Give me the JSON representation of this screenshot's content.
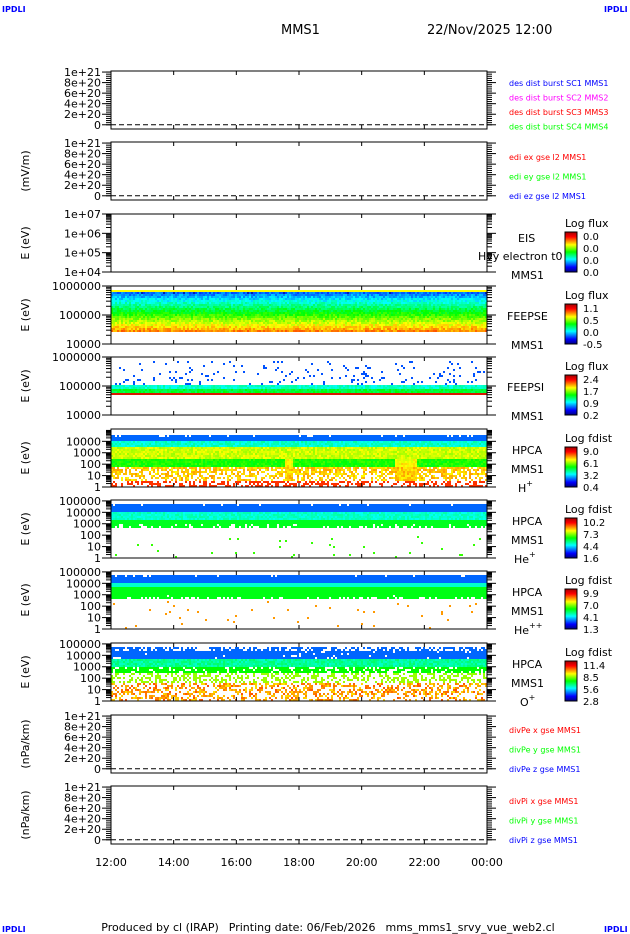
{
  "header": {
    "logo_top_left": "IPDLI",
    "logo_top_right": "IPDLI",
    "spacecraft": "MMS1",
    "datetime": "22/Nov/2025 12:00"
  },
  "footer": {
    "logo_bottom_left": "IPDLI",
    "logo_bottom_right": "IPDLI",
    "credit": "Produced by cl (IRAP)",
    "print_date": "Printing date: 06/Feb/2026",
    "macro": "mms_mms1_srvy_vue_web2.cl"
  },
  "colors": {
    "blue": "#0000ff",
    "magenta": "#ff00ff",
    "red": "#ff0000",
    "green": "#00ff00"
  },
  "chart_data": {
    "type": "heatmap",
    "x_ticks": [
      "12:00",
      "14:00",
      "16:00",
      "18:00",
      "20:00",
      "22:00",
      "00:00"
    ],
    "xlim": [
      "22/Nov/2025 12:00",
      "23/Nov/2025 00:00"
    ],
    "panels": [
      {
        "id": "des-dist",
        "ylabel": "",
        "scale": "linear",
        "ylim": [
          -8e+19,
          1.02e+21
        ],
        "yticks": [
          {
            "value": 1e+21,
            "label": "1e+21"
          },
          {
            "value": 8e+20,
            "label": "8e+20"
          },
          {
            "value": 6e+20,
            "label": "6e+20"
          },
          {
            "value": 4e+20,
            "label": "4e+20"
          },
          {
            "value": 2e+20,
            "label": "2e+20"
          },
          {
            "value": 0,
            "label": "0"
          }
        ],
        "legend": [
          {
            "text": "des dist burst SC1 MMS1",
            "color": "#0000ff"
          },
          {
            "text": "des dist burst SC2 MMS2",
            "color": "#ff00ff"
          },
          {
            "text": "des dist burst SC3 MMS3",
            "color": "#ff0000"
          },
          {
            "text": "des dist burst SC4 MMS4",
            "color": "#00ff00"
          }
        ]
      },
      {
        "id": "edi",
        "ylabel": "(mV/m)",
        "scale": "linear",
        "ylim": [
          -8e+19,
          1.02e+21
        ],
        "yticks": [
          {
            "value": 1e+21,
            "label": "1e+21"
          },
          {
            "value": 8e+20,
            "label": "8e+20"
          },
          {
            "value": 6e+20,
            "label": "6e+20"
          },
          {
            "value": 4e+20,
            "label": "4e+20"
          },
          {
            "value": 2e+20,
            "label": "2e+20"
          },
          {
            "value": 0,
            "label": "0"
          }
        ],
        "legend": [
          {
            "text": "edi ex gse l2 MMS1",
            "color": "#ff0000"
          },
          {
            "text": "edi ey gse l2 MMS1",
            "color": "#00ff00"
          },
          {
            "text": "edi ez gse l2 MMS1",
            "color": "#0000ff"
          }
        ]
      },
      {
        "id": "eis",
        "ylabel": "E (eV)",
        "scale": "log",
        "ylim": [
          10000.0,
          10000000.0
        ],
        "yticks": [
          {
            "value": 10000000.0,
            "label": "1e+07"
          },
          {
            "value": 1000000.0,
            "label": "1e+06"
          },
          {
            "value": 100000.0,
            "label": "1e+05"
          },
          {
            "value": 10000.0,
            "label": "1e+04"
          }
        ],
        "labels": [
          "EIS",
          "Hvy electron t0",
          "MMS1"
        ],
        "colorbar": {
          "title": "Log flux",
          "ticks": [
            "0.0",
            "0.0",
            "0.0",
            "0.0"
          ]
        }
      },
      {
        "id": "feepse",
        "ylabel": "E (eV)",
        "scale": "log",
        "ylim": [
          10000.0,
          1000000.0
        ],
        "yticks": [
          {
            "value": 1000000.0,
            "label": "1000000"
          },
          {
            "value": 100000.0,
            "label": "100000"
          },
          {
            "value": 10000.0,
            "label": "10000"
          }
        ],
        "labels": [
          "FEEPSE",
          "MMS1"
        ],
        "colorbar": {
          "title": "Log flux",
          "ticks": [
            "1.1",
            "0.5",
            "0.0",
            "-0.5"
          ]
        }
      },
      {
        "id": "feepsi",
        "ylabel": "E (eV)",
        "scale": "log",
        "ylim": [
          10000.0,
          1000000.0
        ],
        "yticks": [
          {
            "value": 1000000.0,
            "label": "1000000"
          },
          {
            "value": 100000.0,
            "label": "100000"
          },
          {
            "value": 10000.0,
            "label": "10000"
          }
        ],
        "labels": [
          "FEEPSI",
          "MMS1"
        ],
        "colorbar": {
          "title": "Log flux",
          "ticks": [
            "2.4",
            "1.7",
            "0.9",
            "0.2"
          ]
        }
      },
      {
        "id": "hpca-h",
        "ylabel": "E (eV)",
        "scale": "log",
        "ylim": [
          1,
          120000.0
        ],
        "yticks": [
          {
            "value": 10000.0,
            "label": "10000"
          },
          {
            "value": 1000.0,
            "label": "1000"
          },
          {
            "value": 100.0,
            "label": "100"
          },
          {
            "value": 10,
            "label": "10"
          },
          {
            "value": 1,
            "label": "1"
          }
        ],
        "labels": [
          "HPCA",
          "MMS1"
        ],
        "species": {
          "base": "H",
          "sup": "+"
        },
        "colorbar": {
          "title": "Log fdist",
          "ticks": [
            "9.0",
            "6.1",
            "3.2",
            "0.4"
          ]
        }
      },
      {
        "id": "hpca-he",
        "ylabel": "E (eV)",
        "scale": "log",
        "ylim": [
          1,
          120000.0
        ],
        "yticks": [
          {
            "value": 100000.0,
            "label": "100000"
          },
          {
            "value": 10000.0,
            "label": "10000"
          },
          {
            "value": 1000.0,
            "label": "1000"
          },
          {
            "value": 100.0,
            "label": "100"
          },
          {
            "value": 10,
            "label": "10"
          },
          {
            "value": 1,
            "label": "1"
          }
        ],
        "labels": [
          "HPCA",
          "MMS1"
        ],
        "species": {
          "base": "He",
          "sup": "+"
        },
        "colorbar": {
          "title": "Log fdist",
          "ticks": [
            "10.2",
            "7.3",
            "4.4",
            "1.6"
          ]
        }
      },
      {
        "id": "hpca-hepp",
        "ylabel": "E (eV)",
        "scale": "log",
        "ylim": [
          1,
          120000.0
        ],
        "yticks": [
          {
            "value": 100000.0,
            "label": "100000"
          },
          {
            "value": 10000.0,
            "label": "10000"
          },
          {
            "value": 1000.0,
            "label": "1000"
          },
          {
            "value": 100.0,
            "label": "100"
          },
          {
            "value": 10,
            "label": "10"
          },
          {
            "value": 1,
            "label": "1"
          }
        ],
        "labels": [
          "HPCA",
          "MMS1"
        ],
        "species": {
          "base": "He",
          "sup": "++"
        },
        "colorbar": {
          "title": "Log fdist",
          "ticks": [
            "9.9",
            "7.0",
            "4.1",
            "1.3"
          ]
        }
      },
      {
        "id": "hpca-o",
        "ylabel": "E (eV)",
        "scale": "log",
        "ylim": [
          1,
          120000.0
        ],
        "yticks": [
          {
            "value": 100000.0,
            "label": "100000"
          },
          {
            "value": 10000.0,
            "label": "10000"
          },
          {
            "value": 1000.0,
            "label": "1000"
          },
          {
            "value": 100.0,
            "label": "100"
          },
          {
            "value": 10,
            "label": "10"
          },
          {
            "value": 1,
            "label": "1"
          }
        ],
        "labels": [
          "HPCA",
          "MMS1"
        ],
        "species": {
          "base": "O",
          "sup": "+"
        },
        "colorbar": {
          "title": "Log fdist",
          "ticks": [
            "11.4",
            "8.5",
            "5.6",
            "2.8"
          ]
        }
      },
      {
        "id": "divpe",
        "ylabel": "(nPa/km)",
        "scale": "linear",
        "ylim": [
          -8e+19,
          1.02e+21
        ],
        "yticks": [
          {
            "value": 1e+21,
            "label": "1e+21"
          },
          {
            "value": 8e+20,
            "label": "8e+20"
          },
          {
            "value": 6e+20,
            "label": "6e+20"
          },
          {
            "value": 4e+20,
            "label": "4e+20"
          },
          {
            "value": 2e+20,
            "label": "2e+20"
          },
          {
            "value": 0,
            "label": "0"
          }
        ],
        "legend": [
          {
            "text": "divPe x gse MMS1",
            "color": "#ff0000"
          },
          {
            "text": "divPe y gse MMS1",
            "color": "#00ff00"
          },
          {
            "text": "divPe z gse MMS1",
            "color": "#0000ff"
          }
        ]
      },
      {
        "id": "divpi",
        "ylabel": "(nPa/km)",
        "scale": "linear",
        "ylim": [
          -8e+19,
          1.02e+21
        ],
        "yticks": [
          {
            "value": 1e+21,
            "label": "1e+21"
          },
          {
            "value": 8e+20,
            "label": "8e+20"
          },
          {
            "value": 6e+20,
            "label": "6e+20"
          },
          {
            "value": 4e+20,
            "label": "4e+20"
          },
          {
            "value": 2e+20,
            "label": "2e+20"
          },
          {
            "value": 0,
            "label": "0"
          }
        ],
        "legend": [
          {
            "text": "divPi x gse MMS1",
            "color": "#ff0000"
          },
          {
            "text": "divPi y gse MMS1",
            "color": "#00ff00"
          },
          {
            "text": "divPi z gse MMS1",
            "color": "#0000ff"
          }
        ]
      }
    ]
  }
}
